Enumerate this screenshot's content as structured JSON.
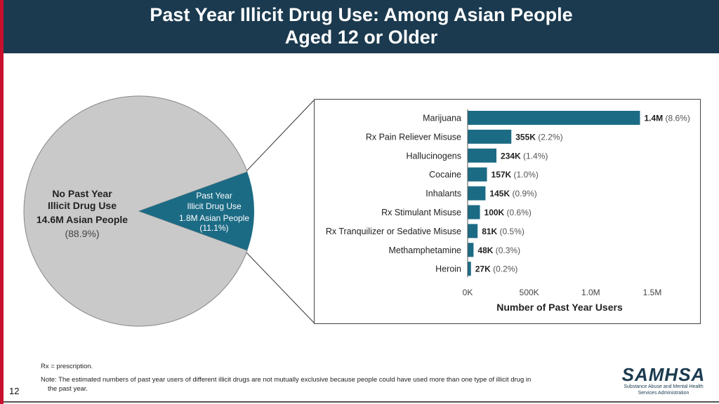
{
  "header": {
    "title_line1": "Past Year Illicit Drug Use: Among Asian People",
    "title_line2": "Aged 12 or Older"
  },
  "pie": {
    "no_use": {
      "line1": "No Past Year",
      "line2": "Illicit Drug Use",
      "line3": "14.6M Asian People",
      "line4": "(88.9%)",
      "percent": 88.9
    },
    "use": {
      "line1": "Past Year",
      "line2": "Illicit Drug Use",
      "line3": "1.8M Asian People",
      "line4": "(11.1%)",
      "percent": 11.1
    },
    "colors": {
      "no_use": "#c9c9c9",
      "use": "#1c6b85"
    }
  },
  "chart_data": {
    "type": "bar",
    "orientation": "horizontal",
    "categories": [
      "Marijuana",
      "Rx Pain Reliever Misuse",
      "Hallucinogens",
      "Cocaine",
      "Inhalants",
      "Rx Stimulant Misuse",
      "Rx Tranquilizer or Sedative Misuse",
      "Methamphetamine",
      "Heroin"
    ],
    "values": [
      1400000,
      355000,
      234000,
      157000,
      145000,
      100000,
      81000,
      48000,
      27000
    ],
    "value_labels": [
      "1.4M",
      "355K",
      "234K",
      "157K",
      "145K",
      "100K",
      "81K",
      "48K",
      "27K"
    ],
    "percent_labels": [
      "(8.6%)",
      "(2.2%)",
      "(1.4%)",
      "(1.0%)",
      "(0.9%)",
      "(0.6%)",
      "(0.5%)",
      "(0.3%)",
      "(0.2%)"
    ],
    "xlabel": "Number of Past Year Users",
    "xlim": [
      0,
      1500000
    ],
    "xticks": [
      0,
      500000,
      1000000,
      1500000
    ],
    "xtick_labels": [
      "0K",
      "500K",
      "1.0M",
      "1.5M"
    ],
    "bar_color": "#1c6b85",
    "grid": false
  },
  "notes": {
    "rx": "Rx = prescription.",
    "note_line1": "Note: The estimated numbers of past year users of different illicit drugs are not mutually exclusive because people could have used more than one type of illicit drug in",
    "note_line2": "the past year."
  },
  "page_number": "12",
  "logo": {
    "mark": "SAMHSA",
    "sub1": "Substance Abuse and Mental Health",
    "sub2": "Services Administration"
  }
}
